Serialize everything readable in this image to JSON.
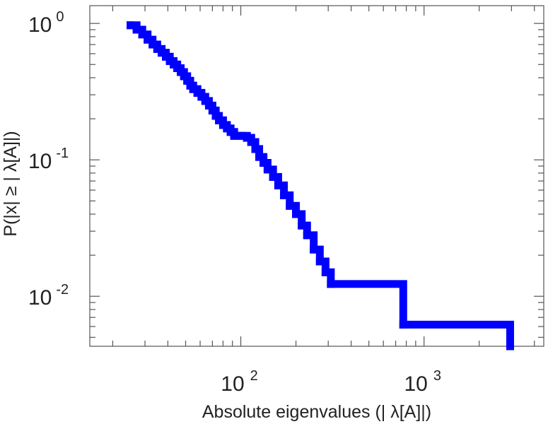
{
  "chart_data": {
    "type": "line",
    "xscale": "log",
    "yscale": "log",
    "xlabel": "Absolute eigenvalues (|     λ[A]|)",
    "ylabel": "P(|x|  ≥ | λ[A]|)",
    "xlim": [
      15,
      4500
    ],
    "ylim": [
      0.0043,
      1.35
    ],
    "x_ticks": [
      {
        "value": 100,
        "base": "10",
        "exp": "2"
      },
      {
        "value": 1000,
        "base": "10",
        "exp": "3"
      }
    ],
    "y_ticks": [
      {
        "value": 1,
        "base": "10",
        "exp": "0"
      },
      {
        "value": 0.1,
        "base": "10",
        "exp": "-1"
      },
      {
        "value": 0.01,
        "base": "10",
        "exp": "-2"
      }
    ],
    "grid": false,
    "legend": "none",
    "series": [
      {
        "color": "#0000ff",
        "step": true,
        "x": [
          25,
          27,
          29,
          31,
          33,
          35,
          37,
          39,
          41,
          43,
          45,
          47,
          49,
          51,
          53,
          55,
          58,
          61,
          64,
          67,
          70,
          73,
          76,
          80,
          84,
          88,
          92,
          97,
          102,
          108,
          114,
          120,
          126,
          133,
          140,
          150,
          160,
          172,
          185,
          200,
          215,
          230,
          250,
          270,
          290,
          310,
          770,
          2950
        ],
        "y": [
          0.97,
          0.9,
          0.83,
          0.76,
          0.7,
          0.65,
          0.61,
          0.57,
          0.53,
          0.5,
          0.47,
          0.44,
          0.41,
          0.38,
          0.35,
          0.33,
          0.31,
          0.29,
          0.27,
          0.25,
          0.23,
          0.21,
          0.195,
          0.18,
          0.17,
          0.16,
          0.15,
          0.15,
          0.15,
          0.145,
          0.135,
          0.12,
          0.105,
          0.095,
          0.085,
          0.075,
          0.065,
          0.055,
          0.046,
          0.04,
          0.033,
          0.028,
          0.022,
          0.018,
          0.015,
          0.0123,
          0.0062,
          0.0043
        ]
      }
    ]
  }
}
